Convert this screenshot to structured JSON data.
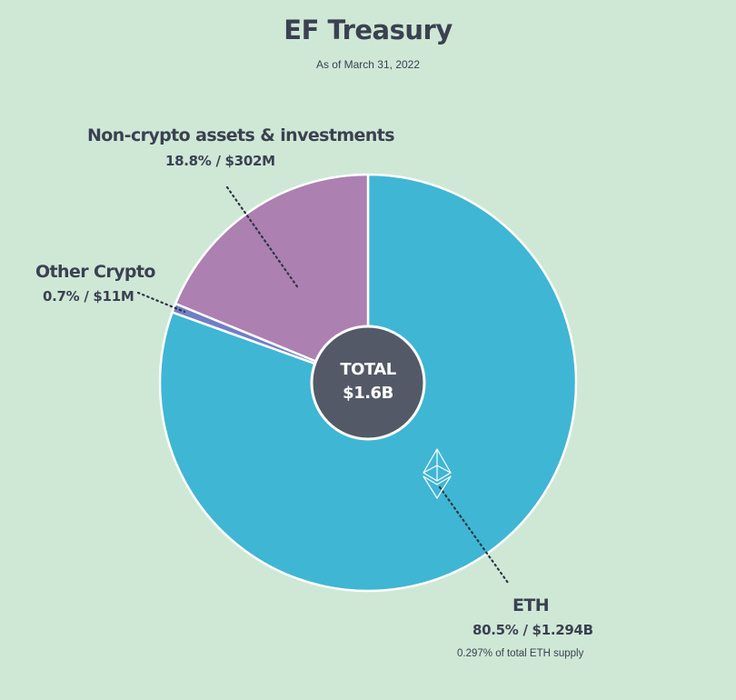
{
  "title": "EF Treasury",
  "subtitle": "As of March 31, 2022",
  "chart_data": {
    "type": "pie",
    "title": "EF Treasury",
    "subtitle": "As of March 31, 2022",
    "center_label": {
      "line1": "TOTAL",
      "line2": "$1.6B"
    },
    "slices": [
      {
        "name": "ETH",
        "percent": 80.5,
        "value_label": "80.5% / $1.294B",
        "note": "0.297% of total ETH supply",
        "color": "#3fb6d4",
        "icon": "ethereum-icon"
      },
      {
        "name": "Other Crypto",
        "percent": 0.7,
        "value_label": "0.7% / $11M",
        "color": "#6f7fc4"
      },
      {
        "name": "Non-crypto assets & investments",
        "percent": 18.8,
        "value_label": "18.8% / $302M",
        "color": "#ac80b1"
      }
    ],
    "colors": {
      "background": "#cfe8d6",
      "center": "#535966",
      "text": "#3a4150"
    }
  }
}
